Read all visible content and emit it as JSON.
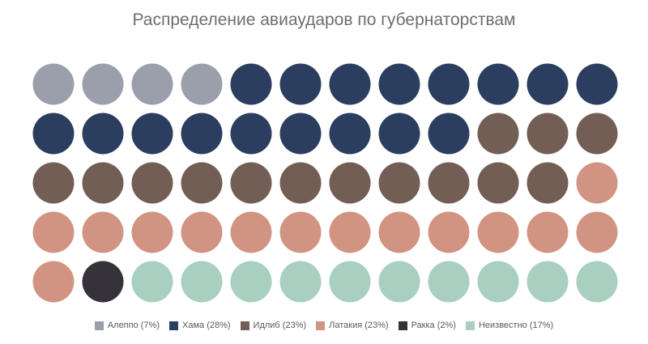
{
  "chart_data": {
    "type": "waffle",
    "title": "Распределение авиаударов по губернаторствам",
    "rows": 5,
    "columns": 12,
    "series": [
      {
        "name": "Алеппо",
        "percent": 7,
        "count": 4,
        "color": "#9a9fab",
        "label": "Алеппо (7%)"
      },
      {
        "name": "Хама",
        "percent": 28,
        "count": 17,
        "color": "#2c3e5f",
        "label": "Хама (28%)"
      },
      {
        "name": "Идлиб",
        "percent": 23,
        "count": 14,
        "color": "#735e55",
        "label": "Идлиб (23%)"
      },
      {
        "name": "Латакия",
        "percent": 23,
        "count": 14,
        "color": "#d29482",
        "label": "Латакия (23%)"
      },
      {
        "name": "Ракка",
        "percent": 2,
        "count": 1,
        "color": "#35323a",
        "label": "Ракка (2%)"
      },
      {
        "name": "Неизвестно",
        "percent": 17,
        "count": 10,
        "color": "#a8cfc0",
        "label": "Неизвестно (17%)"
      }
    ],
    "legend_position": "bottom"
  }
}
